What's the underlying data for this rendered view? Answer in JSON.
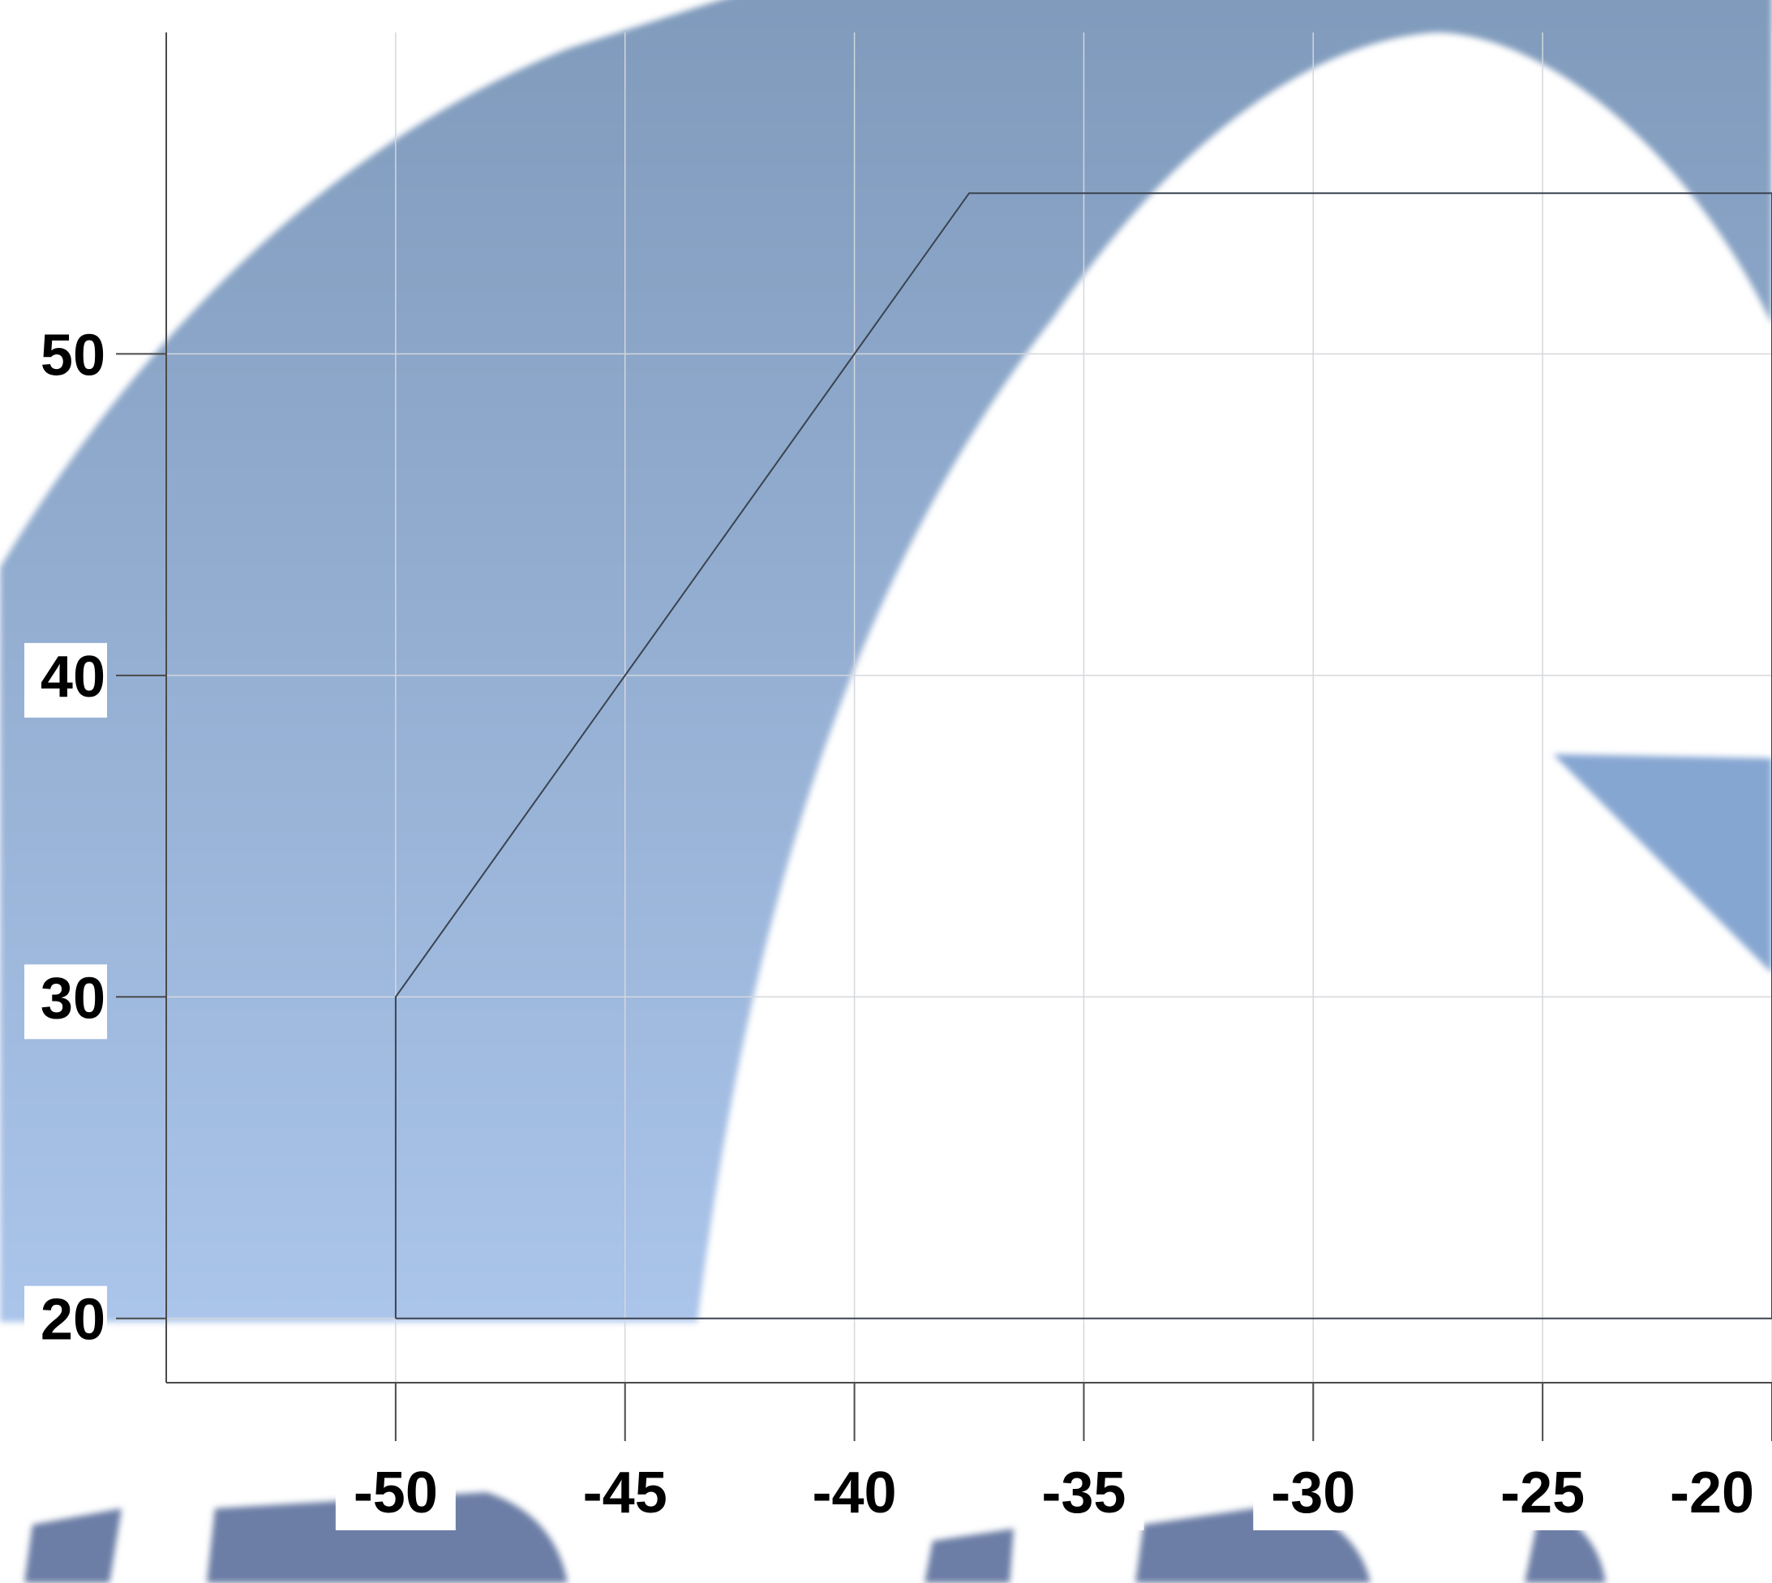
{
  "chart_data": {
    "type": "line",
    "title": "",
    "xlabel": "",
    "ylabel": "",
    "xlim": [
      -55,
      -20
    ],
    "ylim": [
      18,
      60
    ],
    "grid": true,
    "x_ticks": [
      -50,
      -45,
      -40,
      -35,
      -30,
      -25,
      -20
    ],
    "y_ticks": [
      20,
      30,
      40,
      50
    ],
    "x_tick_labels": [
      "-50",
      "-45",
      "-40",
      "-35",
      "-30",
      "-25",
      "-20"
    ],
    "y_tick_labels": [
      "20",
      "30",
      "40",
      "50"
    ],
    "series": [
      {
        "x": [
          -50,
          -50,
          -37.5,
          -20,
          -20,
          -50
        ],
        "y": [
          20,
          30,
          55,
          55,
          20,
          20
        ]
      }
    ],
    "colors": {
      "series": "#3a4350",
      "grid": "#d4d7dc",
      "axis": "#4a4a4a",
      "watermark_top": "#7f9abb",
      "watermark_bottom": "#aac4ea",
      "watermark_text": "#6c7ea6"
    }
  }
}
